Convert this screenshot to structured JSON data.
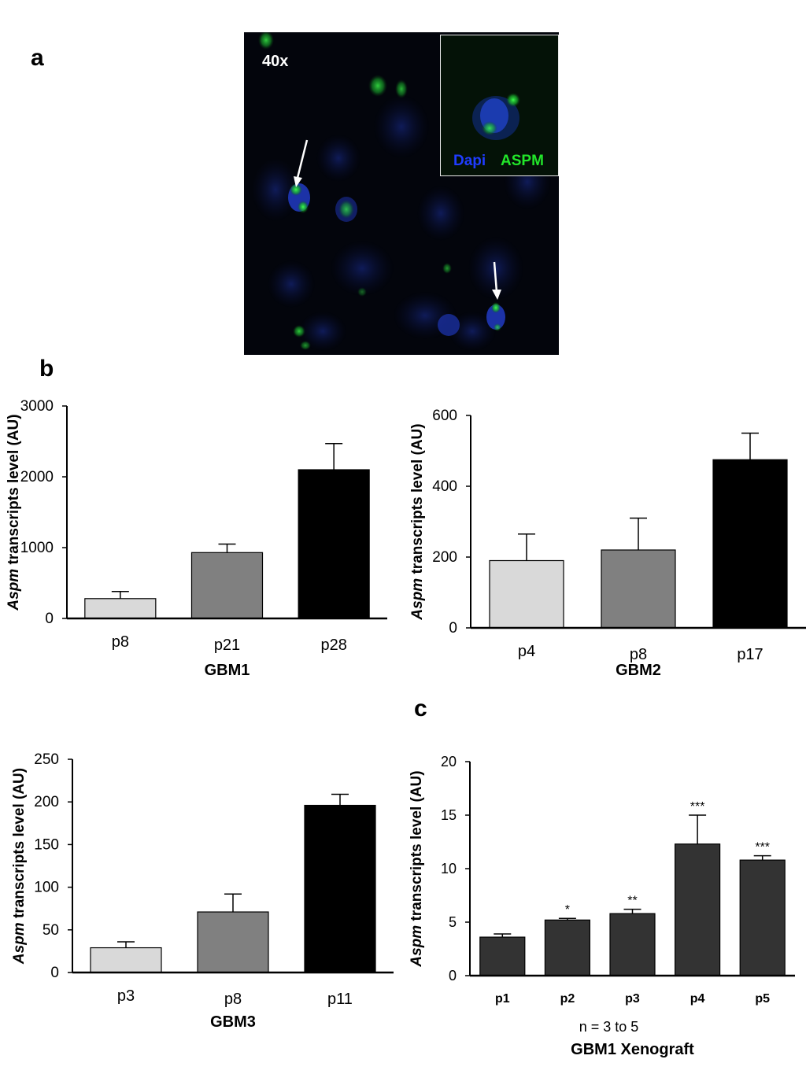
{
  "panels": {
    "a": {
      "letter": "a",
      "magnification": "40x",
      "legend_dapi": "Dapi",
      "legend_aspm": "ASPM",
      "dapi_color": "#1f3cff",
      "aspm_color": "#22e62a"
    },
    "b": {
      "letter": "b"
    },
    "c": {
      "letter": "c"
    }
  },
  "chart_data": [
    {
      "type": "bar",
      "title": "",
      "ylabel_italic": "Aspm",
      "ylabel_rest": " transcripts level (AU)",
      "xlabel": "GBM1",
      "categories": [
        "p8",
        "p21",
        "p28"
      ],
      "values": [
        280,
        930,
        2100
      ],
      "errors": [
        100,
        120,
        370
      ],
      "colors": [
        "#d9d9d9",
        "#808080",
        "#000000"
      ],
      "yticks": [
        0,
        1000,
        2000,
        3000
      ],
      "ylim": [
        0,
        3000
      ],
      "significance": [
        "",
        "",
        ""
      ]
    },
    {
      "type": "bar",
      "title": "",
      "ylabel_italic": "Aspm",
      "ylabel_rest": " transcripts level (AU)",
      "xlabel": "GBM2",
      "categories": [
        "p4",
        "p8",
        "p17"
      ],
      "values": [
        190,
        220,
        475
      ],
      "errors": [
        75,
        90,
        75
      ],
      "colors": [
        "#d9d9d9",
        "#808080",
        "#000000"
      ],
      "yticks": [
        0,
        200,
        400,
        600
      ],
      "ylim": [
        0,
        600
      ],
      "significance": [
        "",
        "",
        ""
      ]
    },
    {
      "type": "bar",
      "title": "",
      "ylabel_italic": "Aspm",
      "ylabel_rest": " transcripts level (AU)",
      "xlabel": "GBM3",
      "categories": [
        "p3",
        "p8",
        "p11"
      ],
      "values": [
        29,
        71,
        196
      ],
      "errors": [
        7,
        21,
        13
      ],
      "colors": [
        "#d9d9d9",
        "#808080",
        "#000000"
      ],
      "yticks": [
        0,
        50,
        100,
        150,
        200,
        250
      ],
      "ylim": [
        0,
        250
      ],
      "significance": [
        "",
        "",
        ""
      ]
    },
    {
      "type": "bar",
      "title": "",
      "ylabel_italic": "Aspm",
      "ylabel_rest": " transcripts level (AU)",
      "xlabel": "GBM1 Xenograft",
      "note": "n = 3 to 5",
      "categories": [
        "p1",
        "p2",
        "p3",
        "p4",
        "p5"
      ],
      "values": [
        3.6,
        5.2,
        5.8,
        12.3,
        10.8
      ],
      "errors": [
        0.3,
        0.15,
        0.4,
        2.7,
        0.4
      ],
      "colors": [
        "#333333",
        "#333333",
        "#333333",
        "#333333",
        "#333333"
      ],
      "yticks": [
        0,
        5,
        10,
        15,
        20
      ],
      "ylim": [
        0,
        20
      ],
      "significance": [
        "",
        "*",
        "**",
        "***",
        "***"
      ]
    }
  ]
}
